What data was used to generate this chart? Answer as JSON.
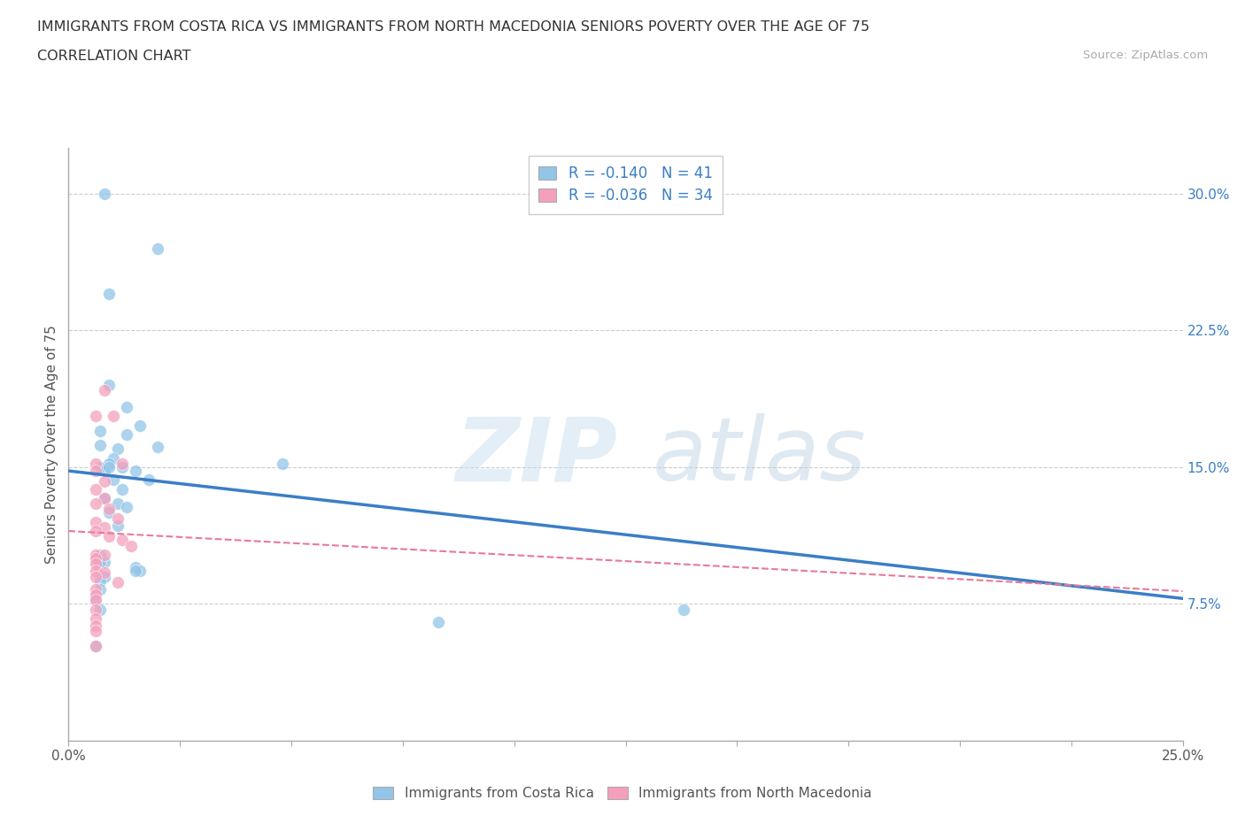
{
  "title_line1": "IMMIGRANTS FROM COSTA RICA VS IMMIGRANTS FROM NORTH MACEDONIA SENIORS POVERTY OVER THE AGE OF 75",
  "title_line2": "CORRELATION CHART",
  "source_text": "Source: ZipAtlas.com",
  "ylabel": "Seniors Poverty Over the Age of 75",
  "xmin": 0.0,
  "xmax": 0.25,
  "ymin": 0.0,
  "ymax": 0.325,
  "yticks": [
    0.075,
    0.15,
    0.225,
    0.3
  ],
  "ytick_labels": [
    "7.5%",
    "15.0%",
    "22.5%",
    "30.0%"
  ],
  "xticks": [
    0.0,
    0.025,
    0.05,
    0.075,
    0.1,
    0.125,
    0.15,
    0.175,
    0.2,
    0.225,
    0.25
  ],
  "xtick_labels_show": {
    "0.0": "0.0%",
    "0.25": "25.0%"
  },
  "legend_labels": [
    "Immigrants from Costa Rica",
    "Immigrants from North Macedonia"
  ],
  "r_costa_rica": -0.14,
  "n_costa_rica": 41,
  "r_north_macedonia": -0.036,
  "n_north_macedonia": 34,
  "color_blue": "#92C5E8",
  "color_pink": "#F4A0BC",
  "line_color_blue": "#3A7EC6",
  "line_color_pink": "#E8799A",
  "background_color": "#ffffff",
  "costa_rica_x": [
    0.008,
    0.02,
    0.009,
    0.009,
    0.013,
    0.016,
    0.007,
    0.013,
    0.007,
    0.011,
    0.01,
    0.009,
    0.012,
    0.008,
    0.015,
    0.018,
    0.01,
    0.012,
    0.008,
    0.011,
    0.013,
    0.009,
    0.011,
    0.007,
    0.009,
    0.02,
    0.048,
    0.007,
    0.008,
    0.015,
    0.016,
    0.007,
    0.008,
    0.015,
    0.007,
    0.083,
    0.007,
    0.006,
    0.007,
    0.138,
    0.006
  ],
  "costa_rica_y": [
    0.3,
    0.27,
    0.245,
    0.195,
    0.183,
    0.173,
    0.17,
    0.168,
    0.162,
    0.16,
    0.155,
    0.152,
    0.15,
    0.148,
    0.148,
    0.143,
    0.143,
    0.138,
    0.133,
    0.13,
    0.128,
    0.125,
    0.118,
    0.15,
    0.15,
    0.161,
    0.152,
    0.102,
    0.098,
    0.095,
    0.093,
    0.098,
    0.09,
    0.093,
    0.088,
    0.065,
    0.083,
    0.078,
    0.072,
    0.072,
    0.052
  ],
  "north_macedonia_x": [
    0.006,
    0.008,
    0.006,
    0.01,
    0.012,
    0.006,
    0.008,
    0.006,
    0.008,
    0.006,
    0.009,
    0.011,
    0.006,
    0.008,
    0.006,
    0.009,
    0.012,
    0.014,
    0.006,
    0.008,
    0.006,
    0.006,
    0.006,
    0.008,
    0.006,
    0.011,
    0.006,
    0.006,
    0.006,
    0.006,
    0.006,
    0.006,
    0.006,
    0.006
  ],
  "north_macedonia_y": [
    0.152,
    0.192,
    0.178,
    0.178,
    0.152,
    0.148,
    0.142,
    0.138,
    0.133,
    0.13,
    0.127,
    0.122,
    0.12,
    0.117,
    0.115,
    0.112,
    0.11,
    0.107,
    0.102,
    0.102,
    0.1,
    0.097,
    0.093,
    0.092,
    0.09,
    0.087,
    0.083,
    0.08,
    0.077,
    0.072,
    0.067,
    0.063,
    0.06,
    0.052
  ],
  "regline_blue_x0": 0.0,
  "regline_blue_y0": 0.148,
  "regline_blue_x1": 0.25,
  "regline_blue_y1": 0.078,
  "regline_pink_x0": 0.0,
  "regline_pink_y0": 0.115,
  "regline_pink_x1": 0.25,
  "regline_pink_y1": 0.082
}
